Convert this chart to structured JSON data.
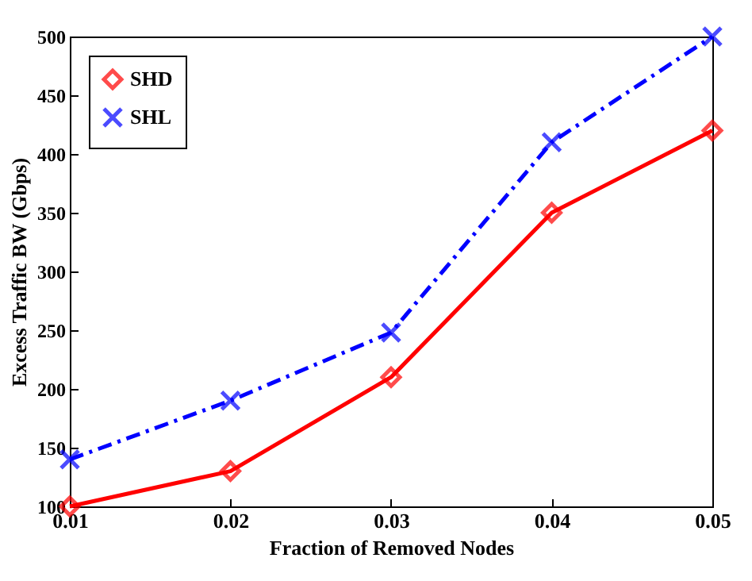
{
  "chart_data": {
    "type": "line",
    "xlabel": "Fraction of Removed Nodes",
    "ylabel": "Excess Traffic BW (Gbps)",
    "x": [
      0.01,
      0.02,
      0.03,
      0.04,
      0.05
    ],
    "series": [
      {
        "name": "SHD",
        "color": "#ff0000",
        "values": [
          100,
          130,
          210,
          350,
          420
        ],
        "marker": "diamond",
        "line_style": "solid"
      },
      {
        "name": "SHL",
        "color": "#0000ff",
        "values": [
          140,
          190,
          248,
          410,
          500
        ],
        "marker": "cross",
        "line_style": "dashed"
      }
    ],
    "xlim": [
      0.01,
      0.05
    ],
    "xticks": [
      0.01,
      0.02,
      0.03,
      0.04,
      0.05
    ],
    "ylim": [
      100,
      500
    ],
    "yticks": [
      100,
      150,
      200,
      250,
      300,
      350,
      400,
      450,
      500
    ],
    "grid": false,
    "legend": "top left"
  }
}
